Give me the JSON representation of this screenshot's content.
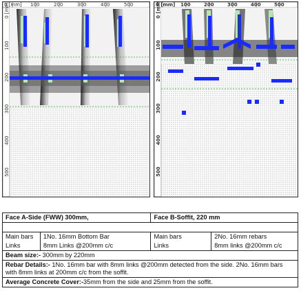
{
  "scan_a": {
    "ruler_x": [
      "0 [mm]",
      "100",
      "200",
      "300",
      "400",
      "500"
    ],
    "ruler_y": [
      "0 [mm]",
      "100",
      "200",
      "300",
      "400",
      "500"
    ]
  },
  "scan_b": {
    "ruler_x": [
      "0 [mm]",
      "100",
      "200",
      "300",
      "400",
      "500"
    ],
    "ruler_y": [
      "0 [mm]",
      "100",
      "200",
      "300",
      "400",
      "500"
    ]
  },
  "face_a": {
    "title": "Face A-Side (FWW) 300mm,",
    "main_bars_label": "Main bars",
    "main_bars_value": "1No. 16mm Bottom Bar",
    "links_label": "Links",
    "links_value": "8mm Links @200mm c/c"
  },
  "face_b": {
    "title": "Face B-Soffit, 220 mm",
    "main_bars_label": "Main bars",
    "main_bars_value": "2No. 16mm rebars",
    "links_label": "Links",
    "links_value": "8mm links @200mm c/c"
  },
  "beam_size": {
    "label": "Beam size:-",
    "value": " 300mm by 220mm"
  },
  "rebar_details": {
    "label": "Rebar Details:-",
    "value": " 1No. 16mm bar with 8mm links @200mm detected from the side. 2No. 16mm bars with 8mm links at 200mm c/c from the soffit."
  },
  "cover": {
    "label": "Average Concrete Cover:-",
    "value": "35mm from the side and 25mm from the soffit."
  },
  "colors": {
    "rebar": "#1a2bff",
    "link_green": "#b6e7b0",
    "dots": "#777777"
  }
}
